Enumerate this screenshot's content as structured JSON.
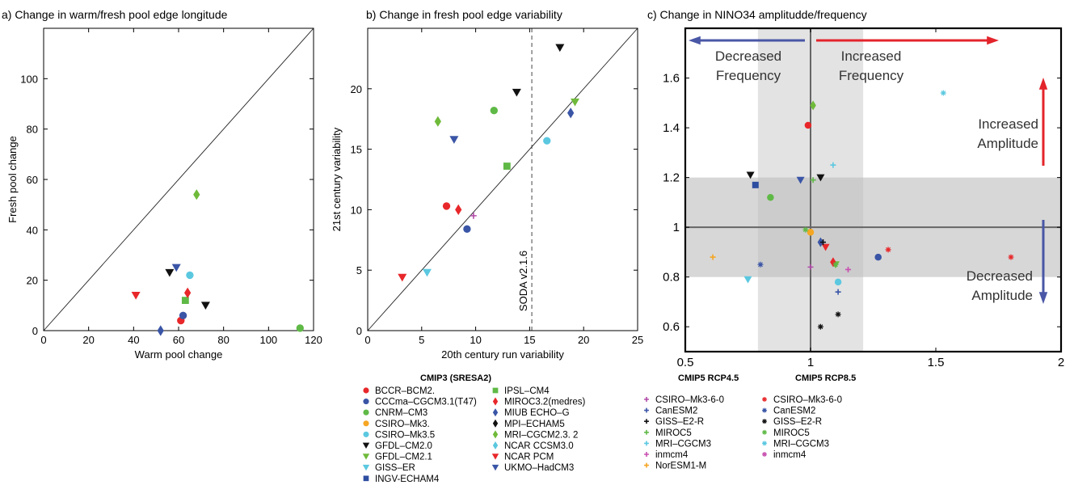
{
  "chart_data": [
    {
      "type": "scatter",
      "title": "a) Change in warm/fresh pool edge longitude",
      "xlabel": "Warm pool change",
      "ylabel": "Fresh pool change",
      "xlim": [
        0,
        120
      ],
      "ylim": [
        0,
        120
      ],
      "xticks": [
        "0",
        "20",
        "40",
        "60",
        "80",
        "100",
        "120"
      ],
      "yticks": [
        "0",
        "20",
        "40",
        "60",
        "80",
        "100"
      ],
      "reference_line": "1:1 diagonal",
      "points": [
        {
          "model": "BCCR-BCM2.",
          "x": 61,
          "y": 4
        },
        {
          "model": "CCCma-CGCM3.1(T47)",
          "x": 62,
          "y": 6
        },
        {
          "model": "CNRM-CM3",
          "x": 114,
          "y": 1
        },
        {
          "model": "CSIRO-Mk3.5",
          "x": 65,
          "y": 22
        },
        {
          "model": "GFDL-CM2.0",
          "x": 56,
          "y": 23
        },
        {
          "model": "GFDL-CM2.0",
          "x": 72,
          "y": 10
        },
        {
          "model": "IPSL-CM4",
          "x": 63,
          "y": 12
        },
        {
          "model": "MIROC3.2(medres)",
          "x": 64,
          "y": 15
        },
        {
          "model": "MIUB ECHO-G",
          "x": 52,
          "y": 0
        },
        {
          "model": "MRI-CGCM2.3. 2",
          "x": 68,
          "y": 54
        },
        {
          "model": "NCAR PCM",
          "x": 41,
          "y": 14
        },
        {
          "model": "UKMO-HadCM3",
          "x": 59,
          "y": 25
        }
      ]
    },
    {
      "type": "scatter",
      "title": "b) Change in fresh pool edge variability",
      "xlabel": "20th century run variability",
      "ylabel": "21st century variability",
      "xlim": [
        0,
        25
      ],
      "ylim": [
        0,
        25
      ],
      "xticks": [
        "0",
        "5",
        "10",
        "15",
        "20",
        "25"
      ],
      "yticks": [
        "0",
        "5",
        "10",
        "15",
        "20"
      ],
      "reference_line": "1:1 diagonal",
      "vline": {
        "x": 15.2,
        "label": "SODA v2.1.6"
      },
      "points": [
        {
          "model": "BCCR-BCM2.",
          "x": 7.3,
          "y": 10.3
        },
        {
          "model": "CCCma-CGCM3.1(T47)",
          "x": 9.2,
          "y": 8.4
        },
        {
          "model": "CNRM-CM3",
          "x": 11.7,
          "y": 18.2
        },
        {
          "model": "CSIRO-Mk3.5",
          "x": 16.6,
          "y": 15.7
        },
        {
          "model": "GFDL-CM2.0",
          "x": 13.8,
          "y": 19.7
        },
        {
          "model": "GFDL-CM2.0",
          "x": 17.8,
          "y": 23.4
        },
        {
          "model": "GFDL-CM2.1",
          "x": 19.2,
          "y": 18.9
        },
        {
          "model": "GISS-ER",
          "x": 5.5,
          "y": 4.8
        },
        {
          "model": "IPSL-CM4",
          "x": 12.9,
          "y": 13.6
        },
        {
          "model": "MIROC3.2(medres)",
          "x": 8.4,
          "y": 10.0
        },
        {
          "model": "MIUB ECHO-G",
          "x": 18.8,
          "y": 18.0
        },
        {
          "model": "MRI-CGCM2.3. 2",
          "x": 6.5,
          "y": 17.3
        },
        {
          "model": "NCAR PCM",
          "x": 3.2,
          "y": 4.4
        },
        {
          "model": "UKMO-HadCM3",
          "x": 8.0,
          "y": 15.8
        },
        {
          "model": "CSIRO-Mk3-6-0",
          "x": 9.8,
          "y": 9.5
        }
      ]
    },
    {
      "type": "scatter",
      "title": "c) Change in NINO34 amplitudde/frequency",
      "xlim": [
        0.5,
        2
      ],
      "ylim": [
        0.5,
        1.8
      ],
      "xticks": [
        "0.5",
        "1",
        "1.5",
        "2"
      ],
      "yticks": [
        "0.6",
        "0.8",
        "1",
        "1.2",
        "1.4",
        "1.6"
      ],
      "shaded_bands": {
        "x": [
          0.79,
          1.21
        ],
        "y": [
          0.8,
          1.2
        ]
      },
      "reference_lines": {
        "x": 1,
        "y": 1
      },
      "annotations": {
        "decreased_frequency": [
          "Decreased",
          "Frequency"
        ],
        "increased_frequency": [
          "Increased",
          "Frequency"
        ],
        "increased_amplitude": [
          "Increased",
          "Amplitude"
        ],
        "decreased_amplitude": [
          "Decreased",
          "Amplitude"
        ]
      },
      "points": [
        {
          "model": "BCCR-BCM2.",
          "x": 0.99,
          "y": 1.41
        },
        {
          "model": "CCCma-CGCM3.1(T47)",
          "x": 1.27,
          "y": 0.88
        },
        {
          "model": "CNRM-CM3",
          "x": 0.84,
          "y": 1.12
        },
        {
          "model": "CSIRO-Mk3.",
          "x": 1.0,
          "y": 0.98
        },
        {
          "model": "CSIRO-Mk3.5",
          "x": 1.11,
          "y": 0.78
        },
        {
          "model": "GFDL-CM2.0",
          "x": 0.76,
          "y": 1.21
        },
        {
          "model": "GFDL-CM2.0",
          "x": 1.04,
          "y": 1.2
        },
        {
          "model": "GFDL-CM2.1",
          "x": 1.1,
          "y": 0.85
        },
        {
          "model": "GISS-ER",
          "x": 0.75,
          "y": 0.79
        },
        {
          "model": "INGV-ECHAM4",
          "x": 0.78,
          "y": 1.17
        },
        {
          "model": "MIROC3.2(medres)",
          "x": 1.09,
          "y": 0.86
        },
        {
          "model": "MIUB ECHO-G",
          "x": 1.04,
          "y": 0.94
        },
        {
          "model": "MRI-CGCM2.3. 2",
          "x": 1.01,
          "y": 1.49
        },
        {
          "model": "NCAR PCM",
          "x": 1.06,
          "y": 0.92
        },
        {
          "model": "UKMO-HadCM3",
          "x": 0.96,
          "y": 1.19
        },
        {
          "model": "CSIRO-Mk3-6-0",
          "x": 1.0,
          "y": 0.84
        },
        {
          "model": "CanESM2",
          "x": 1.11,
          "y": 0.74
        },
        {
          "model": "CanESM2",
          "x": 1.05,
          "y": 0.94
        },
        {
          "model": "GISS-E2-R",
          "x": 1.05,
          "y": 0.94
        },
        {
          "model": "MIROC5",
          "x": 1.01,
          "y": 1.19
        },
        {
          "model": "MRI-CGCM3",
          "x": 1.09,
          "y": 1.25
        },
        {
          "model": "inmcm4",
          "x": 1.15,
          "y": 0.83
        },
        {
          "model": "NorESM1-M",
          "x": 0.61,
          "y": 0.88
        },
        {
          "model": "CSIRO-Mk3-6-0",
          "x": 1.31,
          "y": 0.91
        },
        {
          "model": "CSIRO-Mk3-6-0",
          "x": 1.8,
          "y": 0.88
        },
        {
          "model": "CanESM2",
          "x": 0.8,
          "y": 0.85
        },
        {
          "model": "GISS-E2-R",
          "x": 1.11,
          "y": 0.65
        },
        {
          "model": "GISS-E2-R",
          "x": 1.04,
          "y": 0.6
        },
        {
          "model": "MIROC5",
          "x": 0.98,
          "y": 0.99
        },
        {
          "model": "MIROC5",
          "x": 1.1,
          "y": 0.85
        },
        {
          "model": "MRI-CGCM3",
          "x": 1.53,
          "y": 1.54
        }
      ]
    }
  ],
  "legend": {
    "groups": [
      {
        "title": "CMIP3 (SRESA2)",
        "columns": [
          [
            {
              "label": "BCCR–BCM2.",
              "color": "#e8272a",
              "marker": "circle"
            },
            {
              "label": "CCCma–CGCM3.1(T47)",
              "color": "#3a55a6",
              "marker": "circle"
            },
            {
              "label": "CNRM–CM3",
              "color": "#5fb946",
              "marker": "circle"
            },
            {
              "label": "CSIRO–Mk3.",
              "color": "#f5a623",
              "marker": "circle"
            },
            {
              "label": "CSIRO–Mk3.5",
              "color": "#5bc8e0",
              "marker": "circle"
            },
            {
              "label": "GFDL–CM2.0",
              "color": "#111111",
              "marker": "tri-down"
            },
            {
              "label": "GFDL–CM2.1",
              "color": "#6fba3a",
              "marker": "tri-down"
            },
            {
              "label": "GISS–ER",
              "color": "#5bc8e0",
              "marker": "tri-down"
            },
            {
              "label": "INGV-ECHAM4",
              "color": "#2e4ea0",
              "marker": "square"
            }
          ],
          [
            {
              "label": "IPSL–CM4",
              "color": "#5fb946",
              "marker": "square"
            },
            {
              "label": "MIROC3.2(medres)",
              "color": "#e8272a",
              "marker": "diamond"
            },
            {
              "label": "MIUB ECHO–G",
              "color": "#3a55a6",
              "marker": "diamond"
            },
            {
              "label": "MPI–ECHAM5",
              "color": "#111111",
              "marker": "diamond"
            },
            {
              "label": "MRI–CGCM2.3. 2",
              "color": "#6fba3a",
              "marker": "diamond"
            },
            {
              "label": "NCAR CCSM3.0",
              "color": "#5bc8e0",
              "marker": "diamond"
            },
            {
              "label": "NCAR PCM",
              "color": "#e8272a",
              "marker": "tri-down"
            },
            {
              "label": "UKMO–HadCM3",
              "color": "#3a55a6",
              "marker": "tri-down"
            }
          ]
        ]
      },
      {
        "title": "CMIP5 RCP4.5",
        "columns": [
          [
            {
              "label": "CSIRO–Mk3-6-0",
              "color": "#b04aa8",
              "marker": "plus"
            },
            {
              "label": "CanESM2",
              "color": "#3a55a6",
              "marker": "plus"
            },
            {
              "label": "GISS–E2-R",
              "color": "#111111",
              "marker": "plus"
            },
            {
              "label": "MIROC5",
              "color": "#5fb946",
              "marker": "plus"
            },
            {
              "label": "MRI–CGCM3",
              "color": "#5bc8e0",
              "marker": "plus"
            },
            {
              "label": "inmcm4",
              "color": "#c84fb0",
              "marker": "plus"
            },
            {
              "label": "NorESM1-M",
              "color": "#f5a623",
              "marker": "plus"
            }
          ]
        ]
      },
      {
        "title": "CMIP5 RCP8.5",
        "columns": [
          [
            {
              "label": "CSIRO–Mk3-6-0",
              "color": "#e8272a",
              "marker": "star"
            },
            {
              "label": "CanESM2",
              "color": "#3a55a6",
              "marker": "star"
            },
            {
              "label": "GISS–E2-R",
              "color": "#111111",
              "marker": "star"
            },
            {
              "label": "MIROC5",
              "color": "#5fb946",
              "marker": "star"
            },
            {
              "label": "MRI–CGCM3",
              "color": "#5bc8e0",
              "marker": "star"
            },
            {
              "label": "inmcm4",
              "color": "#c84fb0",
              "marker": "star"
            }
          ]
        ]
      }
    ]
  }
}
